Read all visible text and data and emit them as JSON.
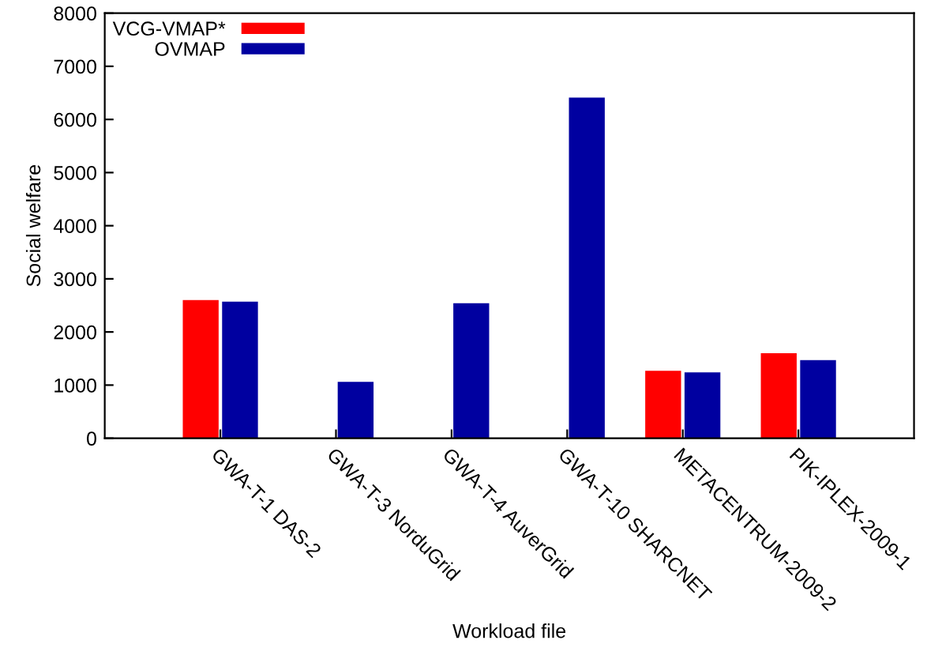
{
  "chart_data": {
    "type": "bar",
    "xlabel": "Workload file",
    "ylabel": "Social welfare",
    "categories": [
      "GWA-T-1 DAS-2",
      "GWA-T-3 NorduGrid",
      "GWA-T-4 AuverGrid",
      "GWA-T-10 SHARCNET",
      "METACENTRUM-2009-2",
      "PIK-IPLEX-2009-1"
    ],
    "series": [
      {
        "name": "VCG-VMAP*",
        "color": "#ff0000",
        "values": [
          2600,
          null,
          null,
          null,
          1270,
          1600
        ]
      },
      {
        "name": "OVMAP",
        "color": "#0000a0",
        "values": [
          2570,
          1060,
          2540,
          6410,
          1240,
          1470
        ]
      }
    ],
    "ylim": [
      0,
      8000
    ],
    "yticks": [
      0,
      1000,
      2000,
      3000,
      4000,
      5000,
      6000,
      7000,
      8000
    ],
    "grid": false,
    "legend": "top left"
  }
}
